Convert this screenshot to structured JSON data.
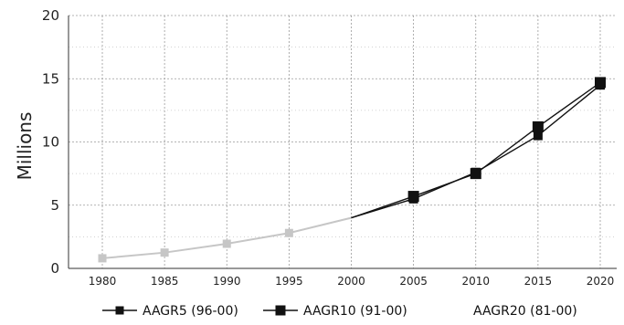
{
  "chart_data": {
    "type": "line",
    "title": "",
    "xlabel": "",
    "ylabel": "Millions",
    "ylim": [
      0,
      20
    ],
    "xlim": [
      1980,
      2020
    ],
    "x_ticks": [
      1980,
      1985,
      1990,
      1995,
      2000,
      2005,
      2010,
      2015,
      2020
    ],
    "y_ticks": [
      0,
      5,
      10,
      15,
      20
    ],
    "grid": true,
    "legend_position": "bottom",
    "historical": {
      "x": [
        1980,
        1985,
        1990,
        1995,
        2000
      ],
      "values": [
        0.8,
        1.25,
        1.95,
        2.8,
        4.0
      ],
      "color": "#c6c6c6"
    },
    "series": [
      {
        "name": "AAGR5 (96-00)",
        "x": [
          2000,
          2005,
          2010,
          2015,
          2020
        ],
        "values": [
          4.0,
          5.5,
          7.6,
          10.5,
          14.5
        ],
        "color": "#111111",
        "marker": "square-small"
      },
      {
        "name": "AAGR10 (91-00)",
        "x": [
          2000,
          2005,
          2010,
          2015,
          2020
        ],
        "values": [
          4.0,
          5.7,
          7.5,
          11.2,
          14.7
        ],
        "color": "#111111",
        "marker": "square"
      },
      {
        "name": "AAGR20 (81-00)",
        "x": [],
        "values": [],
        "color": "#111111",
        "marker": "none"
      }
    ]
  }
}
